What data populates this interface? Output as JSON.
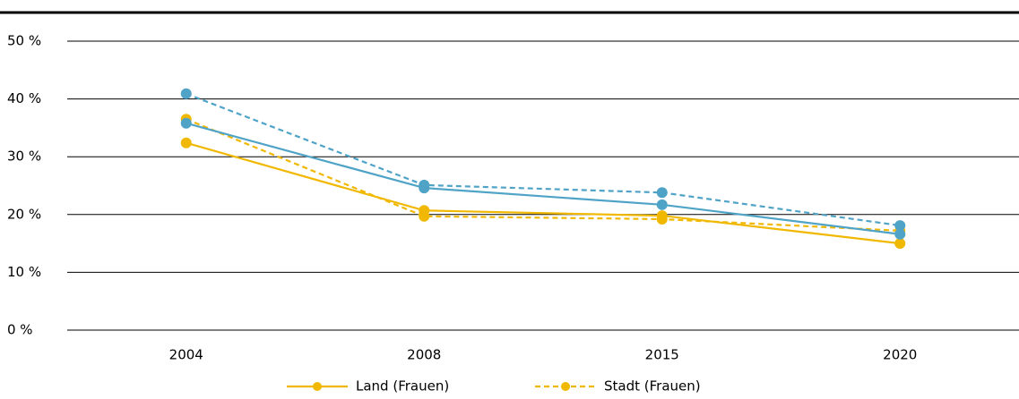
{
  "chart_data": {
    "type": "line",
    "categories": [
      "2004",
      "2008",
      "2015",
      "2020"
    ],
    "series": [
      {
        "name": "Land (Frauen)",
        "color": "#f0b800",
        "dash": false,
        "values": [
          32.4,
          20.7,
          19.8,
          15.0
        ]
      },
      {
        "name": "Stadt (Frauen)",
        "color": "#f0b800",
        "dash": true,
        "values": [
          36.5,
          19.7,
          19.2,
          17.2
        ]
      },
      {
        "color": "#4fa3c7",
        "dash": false,
        "values": [
          35.8,
          24.6,
          21.7,
          16.6
        ]
      },
      {
        "color": "#4fa3c7",
        "dash": true,
        "values": [
          40.9,
          25.1,
          23.8,
          18.1
        ]
      }
    ],
    "ylim": [
      0,
      50
    ],
    "yticks": [
      {
        "value": 0,
        "label": "0 %"
      },
      {
        "value": 10,
        "label": "10 %"
      },
      {
        "value": 20,
        "label": "20 %"
      },
      {
        "value": 30,
        "label": "30 %"
      },
      {
        "value": 40,
        "label": "40 %"
      },
      {
        "value": 50,
        "label": "50 %"
      }
    ],
    "grid": true
  }
}
